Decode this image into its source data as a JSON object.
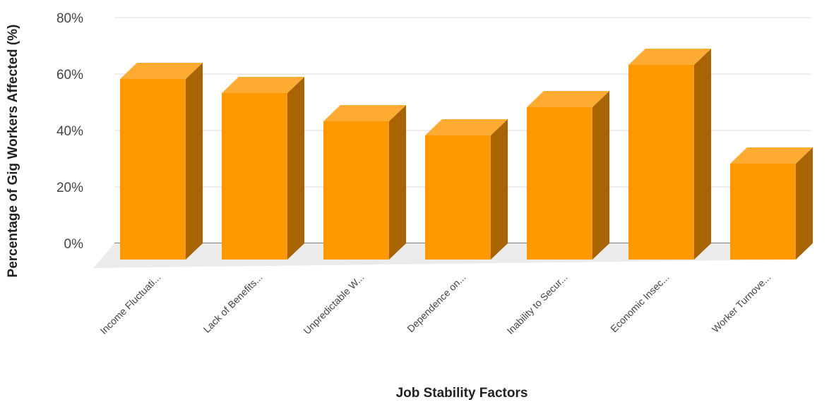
{
  "chart_data": {
    "type": "bar",
    "style": "3d",
    "categories": [
      "Income Fluctuati...",
      "Lack of Benefits...",
      "Unpredictable W...",
      "Dependence on...",
      "Inability to Secur...",
      "Economic Insec...",
      "Worker Turnove..."
    ],
    "values": [
      64,
      59,
      49,
      44,
      54,
      69,
      34
    ],
    "xlabel": "Job Stability Factors",
    "ylabel": "Percentage of Gig Workers Affected (%)",
    "ylim": [
      0,
      80
    ],
    "yticks": [
      "0%",
      "20%",
      "40%",
      "60%",
      "80%"
    ],
    "grid": true,
    "legend": "none",
    "colors": {
      "bar_front": "#ff9900",
      "bar_top": "#ffaa33",
      "bar_side": "#a86400",
      "floor": "#ebebeb",
      "gridline": "#d9d9d9",
      "baseline": "#333333"
    }
  }
}
